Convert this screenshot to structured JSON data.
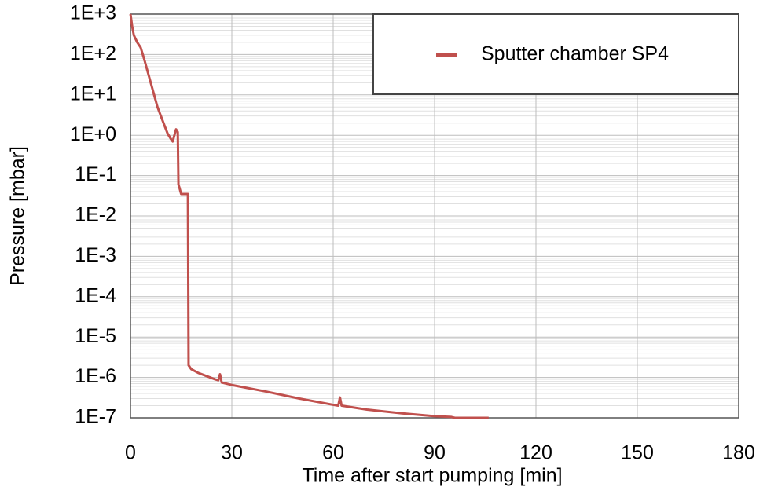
{
  "chart_data": {
    "type": "line",
    "xlabel": "Time after start pumping [min]",
    "ylabel": "Pressure [mbar]",
    "x": [
      0,
      0.5,
      1,
      2,
      3,
      4,
      5,
      6,
      7,
      8,
      9,
      10,
      11,
      12,
      12.5,
      13,
      13.5,
      14,
      14.2,
      14.5,
      15,
      17,
      17.2,
      18,
      20,
      25,
      26,
      26.5,
      27,
      30,
      40,
      50,
      60,
      61.5,
      62,
      62.5,
      70,
      80,
      90,
      95,
      96,
      106
    ],
    "series": [
      {
        "name": "Sputter chamber SP4",
        "color": "#c0504d",
        "values": [
          1000,
          500,
          300,
          200,
          150,
          80,
          40,
          20,
          10,
          5,
          3,
          1.8,
          1.1,
          0.8,
          0.7,
          1.0,
          1.4,
          1.2,
          0.06,
          0.05,
          0.035,
          0.035,
          2e-06,
          1.6e-06,
          1.3e-06,
          9e-07,
          8.5e-07,
          1.2e-06,
          7.5e-07,
          6.5e-07,
          4.5e-07,
          3e-07,
          2.1e-07,
          2e-07,
          3.2e-07,
          2e-07,
          1.6e-07,
          1.3e-07,
          1.1e-07,
          1.05e-07,
          1e-07,
          1e-07
        ]
      }
    ],
    "xlim": [
      0,
      180
    ],
    "xticks": [
      0,
      30,
      60,
      90,
      120,
      150,
      180
    ],
    "ylim": [
      1e-07,
      1000
    ],
    "yticks": [
      {
        "value": 1000,
        "label": "1E+3"
      },
      {
        "value": 100,
        "label": "1E+2"
      },
      {
        "value": 10,
        "label": "1E+1"
      },
      {
        "value": 1,
        "label": "1E+0"
      },
      {
        "value": 0.1,
        "label": "1E-1"
      },
      {
        "value": 0.01,
        "label": "1E-2"
      },
      {
        "value": 0.001,
        "label": "1E-3"
      },
      {
        "value": 0.0001,
        "label": "1E-4"
      },
      {
        "value": 1e-05,
        "label": "1E-5"
      },
      {
        "value": 1e-06,
        "label": "1E-6"
      },
      {
        "value": 1e-07,
        "label": "1E-7"
      }
    ],
    "log_y": true,
    "grid": true,
    "minor_grid": true,
    "legend": "upper right"
  }
}
